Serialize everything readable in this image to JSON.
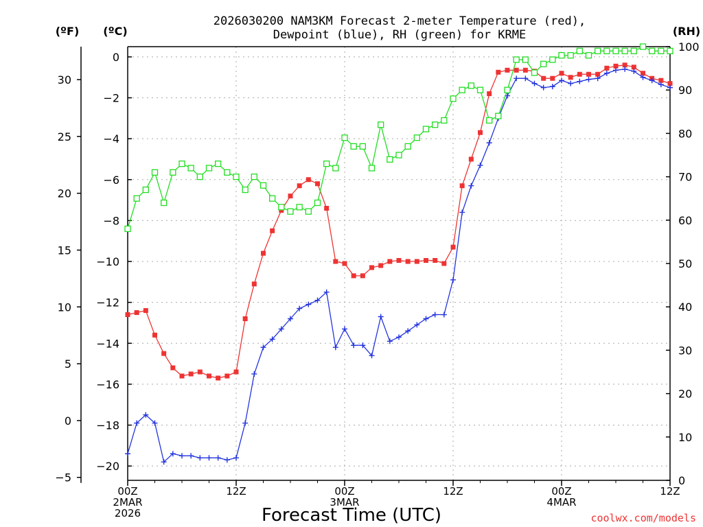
{
  "chart_data": {
    "type": "line",
    "title_line1": "2026030200 NAM3KM Forecast 2-meter Temperature (red),",
    "title_line2": "Dewpoint (blue), RH (green) for KRME",
    "xlabel": "Forecast Time (UTC)",
    "unit_f": "(ºF)",
    "unit_c": "(ºC)",
    "unit_rh": "(RH)",
    "credit": "coolwx.com/models",
    "x_hours_range": [
      0,
      60
    ],
    "x_ticks": [
      {
        "hour": 0,
        "l1": "00Z",
        "l2": "2MAR",
        "l3": "2026"
      },
      {
        "hour": 12,
        "l1": "12Z",
        "l2": "",
        "l3": ""
      },
      {
        "hour": 24,
        "l1": "00Z",
        "l2": "3MAR",
        "l3": ""
      },
      {
        "hour": 36,
        "l1": "12Z",
        "l2": "",
        "l3": ""
      },
      {
        "hour": 48,
        "l1": "00Z",
        "l2": "4MAR",
        "l3": ""
      },
      {
        "hour": 60,
        "l1": "12Z",
        "l2": "",
        "l3": ""
      }
    ],
    "y_c_range": [
      -20.7,
      0.5
    ],
    "y_c_ticks": [
      0,
      -2,
      -4,
      -6,
      -8,
      -10,
      -12,
      -14,
      -16,
      -18,
      -20
    ],
    "y_c_labels": [
      "0",
      "−2",
      "−4",
      "−6",
      "−8",
      "−10",
      "−12",
      "−14",
      "−16",
      "−18",
      "−20"
    ],
    "y_f_ticks": [
      30,
      25,
      20,
      15,
      10,
      5,
      0,
      -5
    ],
    "y_f_labels": [
      "30",
      "25",
      "20",
      "15",
      "10",
      "5",
      "0",
      "−5"
    ],
    "y_rh_range": [
      0,
      100
    ],
    "y_rh_ticks": [
      0,
      10,
      20,
      30,
      40,
      50,
      60,
      70,
      80,
      90,
      100
    ],
    "y_rh_labels": [
      "0",
      "10",
      "20",
      "30",
      "40",
      "50",
      "60",
      "70",
      "80",
      "90",
      "100"
    ],
    "grid": true,
    "series": [
      {
        "name": "Temperature",
        "color": "#ee3333",
        "marker": "filled-square",
        "axis": "celsius",
        "x": [
          0,
          1,
          2,
          3,
          4,
          5,
          6,
          7,
          8,
          9,
          10,
          11,
          12,
          13,
          14,
          15,
          16,
          17,
          18,
          19,
          20,
          21,
          22,
          23,
          24,
          25,
          26,
          27,
          28,
          29,
          30,
          31,
          32,
          33,
          34,
          35,
          36,
          37,
          38,
          39,
          40,
          41,
          42,
          43,
          44,
          45,
          46,
          47,
          48,
          49,
          50,
          51,
          52,
          53,
          54,
          55,
          56,
          57,
          58,
          59,
          60
        ],
        "values": [
          -12.6,
          -12.5,
          -12.4,
          -13.6,
          -14.5,
          -15.2,
          -15.6,
          -15.5,
          -15.4,
          -15.6,
          -15.7,
          -15.6,
          -15.4,
          -12.8,
          -11.1,
          -9.6,
          -8.5,
          -7.5,
          -6.8,
          -6.3,
          -6.0,
          -6.2,
          -7.4,
          -10.0,
          -10.1,
          -10.7,
          -10.7,
          -10.3,
          -10.2,
          -10.0,
          -9.95,
          -10.0,
          -10.0,
          -9.95,
          -9.95,
          -10.1,
          -9.3,
          -6.3,
          -5.0,
          -3.7,
          -1.8,
          -0.75,
          -0.65,
          -0.65,
          -0.65,
          -0.7,
          -1.05,
          -1.05,
          -0.8,
          -1.0,
          -0.85,
          -0.85,
          -0.85,
          -0.55,
          -0.45,
          -0.4,
          -0.5,
          -0.8,
          -1.05,
          -1.15,
          -1.3
        ]
      },
      {
        "name": "Dewpoint",
        "color": "#2233dd",
        "marker": "plus",
        "axis": "celsius",
        "x": [
          0,
          1,
          2,
          3,
          4,
          5,
          6,
          7,
          8,
          9,
          10,
          11,
          12,
          13,
          14,
          15,
          16,
          17,
          18,
          19,
          20,
          21,
          22,
          23,
          24,
          25,
          26,
          27,
          28,
          29,
          30,
          31,
          32,
          33,
          34,
          35,
          36,
          37,
          38,
          39,
          40,
          41,
          42,
          43,
          44,
          45,
          46,
          47,
          48,
          49,
          50,
          51,
          52,
          53,
          54,
          55,
          56,
          57,
          58,
          59,
          60
        ],
        "values": [
          -19.4,
          -17.9,
          -17.5,
          -17.9,
          -19.8,
          -19.4,
          -19.5,
          -19.5,
          -19.6,
          -19.6,
          -19.6,
          -19.7,
          -19.6,
          -17.9,
          -15.5,
          -14.2,
          -13.8,
          -13.3,
          -12.8,
          -12.3,
          -12.1,
          -11.9,
          -11.5,
          -14.2,
          -13.3,
          -14.1,
          -14.1,
          -14.6,
          -12.7,
          -13.9,
          -13.7,
          -13.4,
          -13.1,
          -12.8,
          -12.6,
          -12.6,
          -10.9,
          -7.6,
          -6.3,
          -5.3,
          -4.2,
          -3.0,
          -1.9,
          -1.05,
          -1.05,
          -1.3,
          -1.5,
          -1.45,
          -1.15,
          -1.3,
          -1.2,
          -1.1,
          -1.05,
          -0.8,
          -0.65,
          -0.6,
          -0.7,
          -1.0,
          -1.15,
          -1.35,
          -1.5
        ]
      },
      {
        "name": "RH",
        "color": "#22dd22",
        "marker": "open-square",
        "axis": "rh",
        "x": [
          0,
          1,
          2,
          3,
          4,
          5,
          6,
          7,
          8,
          9,
          10,
          11,
          12,
          13,
          14,
          15,
          16,
          17,
          18,
          19,
          20,
          21,
          22,
          23,
          24,
          25,
          26,
          27,
          28,
          29,
          30,
          31,
          32,
          33,
          34,
          35,
          36,
          37,
          38,
          39,
          40,
          41,
          42,
          43,
          44,
          45,
          46,
          47,
          48,
          49,
          50,
          51,
          52,
          53,
          54,
          55,
          56,
          57,
          58,
          59,
          60
        ],
        "values": [
          58,
          65,
          67,
          71,
          64,
          71,
          73,
          72,
          70,
          72,
          73,
          71,
          70,
          67,
          70,
          68,
          65,
          63,
          62,
          63,
          62,
          64,
          73,
          72,
          79,
          77,
          77,
          72,
          82,
          74,
          75,
          77,
          79,
          81,
          82,
          83,
          88,
          90,
          91,
          90,
          83,
          84,
          90,
          97,
          97,
          94,
          96,
          97,
          98,
          98,
          99,
          98,
          99,
          99,
          99,
          99,
          99,
          100,
          99,
          99,
          99
        ]
      }
    ]
  }
}
